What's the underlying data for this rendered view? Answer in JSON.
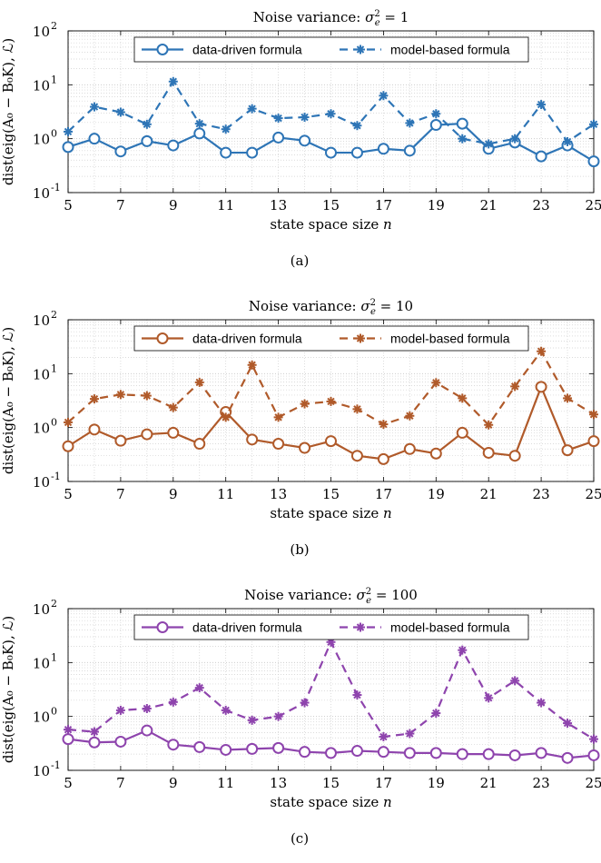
{
  "chart_data": [
    {
      "type": "line",
      "title_prefix": "Noise variance: ",
      "title_math": "σ",
      "title_sub": "e",
      "title_sup": "2",
      "title_value": " = 1",
      "xlabel": "state space size ",
      "xlabel_var": "n",
      "ylabel": "dist(eig(A₀ − B₀K), ℒ)",
      "yscale": "log",
      "xlim": [
        5,
        25
      ],
      "ylim": [
        0.1,
        100
      ],
      "xticks": [
        "5",
        "7",
        "9",
        "11",
        "13",
        "15",
        "17",
        "19",
        "21",
        "23",
        "25"
      ],
      "yticks": [
        {
          "base": "10",
          "exp": "-1"
        },
        {
          "base": "10",
          "exp": "0"
        },
        {
          "base": "10",
          "exp": "1"
        },
        {
          "base": "10",
          "exp": "2"
        }
      ],
      "grid": true,
      "legend_position": "top-center",
      "color": "#2e75b6",
      "caption": "(a)",
      "x": [
        5,
        6,
        7,
        8,
        9,
        10,
        11,
        12,
        13,
        14,
        15,
        16,
        17,
        18,
        19,
        20,
        21,
        22,
        23,
        24,
        25
      ],
      "series": [
        {
          "name": "data-driven formula",
          "style": "solid-circle",
          "values": [
            0.7,
            1.0,
            0.58,
            0.9,
            0.75,
            1.25,
            0.55,
            0.55,
            1.05,
            0.92,
            0.55,
            0.55,
            0.65,
            0.6,
            1.8,
            1.9,
            0.65,
            0.85,
            0.47,
            0.75,
            0.38
          ]
        },
        {
          "name": "model-based formula",
          "style": "dashed-star",
          "values": [
            1.35,
            3.9,
            3.1,
            1.85,
            11.5,
            1.9,
            1.5,
            3.6,
            2.4,
            2.5,
            2.9,
            1.75,
            6.3,
            1.95,
            2.9,
            1.0,
            0.8,
            1.0,
            4.3,
            0.88,
            1.85
          ]
        }
      ]
    },
    {
      "type": "line",
      "title_prefix": "Noise variance: ",
      "title_math": "σ",
      "title_sub": "e",
      "title_sup": "2",
      "title_value": " = 10",
      "xlabel": "state space size ",
      "xlabel_var": "n",
      "ylabel": "dist(eig(A₀ − B₀K), ℒ)",
      "yscale": "log",
      "xlim": [
        5,
        25
      ],
      "ylim": [
        0.1,
        100
      ],
      "xticks": [
        "5",
        "7",
        "9",
        "11",
        "13",
        "15",
        "17",
        "19",
        "21",
        "23",
        "25"
      ],
      "yticks": [
        {
          "base": "10",
          "exp": "-1"
        },
        {
          "base": "10",
          "exp": "0"
        },
        {
          "base": "10",
          "exp": "1"
        },
        {
          "base": "10",
          "exp": "2"
        }
      ],
      "grid": true,
      "legend_position": "top-center",
      "color": "#b05a2a",
      "caption": "(b)",
      "x": [
        5,
        6,
        7,
        8,
        9,
        10,
        11,
        12,
        13,
        14,
        15,
        16,
        17,
        18,
        19,
        20,
        21,
        22,
        23,
        24,
        25
      ],
      "series": [
        {
          "name": "data-driven formula",
          "style": "solid-circle",
          "values": [
            0.45,
            0.92,
            0.57,
            0.75,
            0.8,
            0.5,
            1.95,
            0.6,
            0.5,
            0.42,
            0.56,
            0.3,
            0.26,
            0.4,
            0.33,
            0.8,
            0.34,
            0.3,
            5.7,
            0.38,
            0.56
          ]
        },
        {
          "name": "model-based formula",
          "style": "dashed-star",
          "values": [
            1.25,
            3.4,
            4.1,
            3.9,
            2.35,
            6.9,
            1.55,
            14.5,
            1.55,
            2.75,
            3.05,
            2.2,
            1.15,
            1.65,
            6.8,
            3.5,
            1.12,
            5.8,
            26,
            3.5,
            1.75
          ]
        }
      ]
    },
    {
      "type": "line",
      "title_prefix": "Noise variance: ",
      "title_math": "σ",
      "title_sub": "e",
      "title_sup": "2",
      "title_value": " = 100",
      "xlabel": "state space size ",
      "xlabel_var": "n",
      "ylabel": "dist(eig(A₀ − B₀K), ℒ)",
      "yscale": "log",
      "xlim": [
        5,
        25
      ],
      "ylim": [
        0.1,
        100
      ],
      "xticks": [
        "5",
        "7",
        "9",
        "11",
        "13",
        "15",
        "17",
        "19",
        "21",
        "23",
        "25"
      ],
      "yticks": [
        {
          "base": "10",
          "exp": "-1"
        },
        {
          "base": "10",
          "exp": "0"
        },
        {
          "base": "10",
          "exp": "1"
        },
        {
          "base": "10",
          "exp": "2"
        }
      ],
      "grid": true,
      "legend_position": "top-center",
      "color": "#8e44ad",
      "caption": "(c)",
      "x": [
        5,
        6,
        7,
        8,
        9,
        10,
        11,
        12,
        13,
        14,
        15,
        16,
        17,
        18,
        19,
        20,
        21,
        22,
        23,
        24,
        25
      ],
      "series": [
        {
          "name": "data-driven formula",
          "style": "solid-circle",
          "values": [
            0.38,
            0.33,
            0.34,
            0.55,
            0.3,
            0.27,
            0.24,
            0.25,
            0.26,
            0.22,
            0.21,
            0.23,
            0.22,
            0.21,
            0.21,
            0.2,
            0.2,
            0.19,
            0.21,
            0.17,
            0.19
          ]
        },
        {
          "name": "model-based formula",
          "style": "dashed-star",
          "values": [
            0.57,
            0.52,
            1.3,
            1.4,
            1.85,
            3.4,
            1.3,
            0.85,
            1.0,
            1.8,
            24,
            2.5,
            0.42,
            0.48,
            1.15,
            17,
            2.2,
            4.6,
            1.8,
            0.75,
            0.38
          ]
        }
      ]
    }
  ]
}
